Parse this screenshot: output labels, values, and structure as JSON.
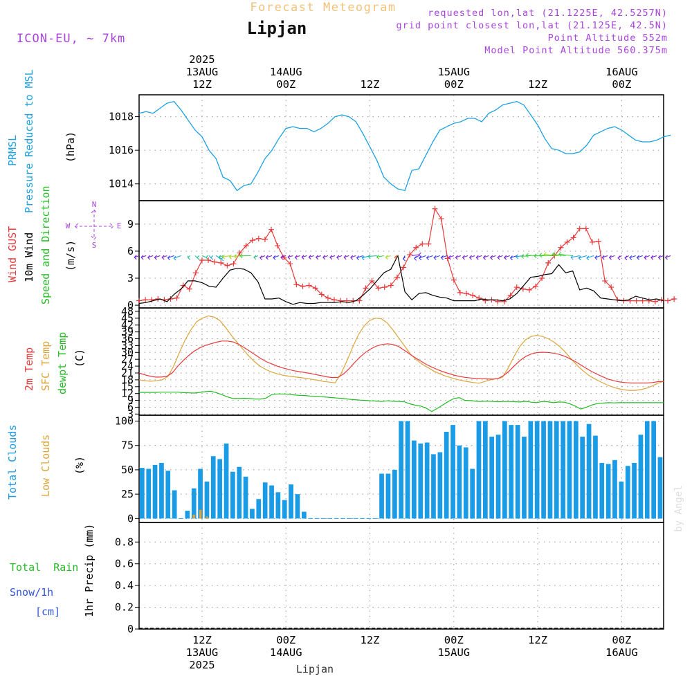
{
  "header": {
    "title": "Forecast Meteogram",
    "location": "Lipjan",
    "model": "ICON-EU, ~ 7km",
    "requested": "requested lon,lat (21.1225E, 42.5257N)",
    "gridpoint": "grid point closest lon,lat (21.125E, 42.5N)",
    "altitude": "Point Altitude 552m",
    "model_altitude": "Model Point Altitude 560.375m",
    "footer": "Lipjan",
    "watermark": "by Angel"
  },
  "colors": {
    "pressure": "#1ba1e2",
    "gust": "#e8393b",
    "wind": "#000000",
    "dir_label": "#22bb22",
    "sfc": "#dca43a",
    "dewpt": "#22bb22",
    "total_clouds": "#1a9be6",
    "low_clouds": "#dca43a",
    "rain": "#22bb22",
    "snow": "#3355dd",
    "compass": "#aa44dd",
    "header_purple": "#aa44dd",
    "header_orange": "#f2c27a",
    "grid": "#999999"
  },
  "labels": {
    "p1": [
      "PRMSL",
      "Pressure Reduced to MSL"
    ],
    "p1_unit": "(hPa)",
    "p2": [
      "Wind GUST",
      "10m Wind",
      "Speed and Direction"
    ],
    "p2_unit": "(m/s)",
    "compass": {
      "n": "N",
      "s": "S",
      "w": "W",
      "e": "E"
    },
    "p3": [
      "2m Temp",
      "SFC Temp",
      "dewpt Temp"
    ],
    "p3_unit": "(C)",
    "p4": [
      "Total Clouds",
      "Low Clouds"
    ],
    "p4_unit": "(%)",
    "p5_left": [
      "Total  Rain",
      "Snow/1h",
      "[cm]"
    ],
    "p5_axis": "1hr Precip (mm)"
  },
  "time_axis": {
    "top": [
      {
        "hour": 12,
        "lines": [
          "2025",
          "13AUG",
          "12Z"
        ]
      },
      {
        "hour": 24,
        "lines": [
          "14AUG",
          "00Z"
        ]
      },
      {
        "hour": 36,
        "lines": [
          "12Z"
        ]
      },
      {
        "hour": 48,
        "lines": [
          "15AUG",
          "00Z"
        ]
      },
      {
        "hour": 60,
        "lines": [
          "12Z"
        ]
      },
      {
        "hour": 72,
        "lines": [
          "16AUG",
          "00Z"
        ]
      }
    ],
    "bottom": [
      {
        "hour": 12,
        "lines": [
          "12Z",
          "13AUG",
          "2025"
        ]
      },
      {
        "hour": 24,
        "lines": [
          "00Z",
          "14AUG"
        ]
      },
      {
        "hour": 36,
        "lines": [
          "12Z"
        ]
      },
      {
        "hour": 48,
        "lines": [
          "00Z",
          "15AUG"
        ]
      },
      {
        "hour": 60,
        "lines": [
          "12Z"
        ]
      },
      {
        "hour": 72,
        "lines": [
          "00Z",
          "16AUG"
        ]
      }
    ]
  },
  "chart_data": [
    {
      "type": "line",
      "name": "PRMSL",
      "ylim": [
        1013,
        1019.3
      ],
      "yticks": [
        1014,
        1016,
        1018
      ],
      "x": [
        0,
        1,
        2,
        3,
        4,
        5,
        6,
        7,
        8,
        9,
        10,
        11,
        12,
        13,
        14,
        15,
        16,
        17,
        18,
        19,
        20,
        21,
        22,
        23,
        24,
        25,
        26,
        27,
        28,
        29,
        30,
        31,
        32,
        33,
        34,
        35,
        36,
        37,
        38,
        39,
        40,
        41,
        42,
        43,
        44,
        45,
        46,
        47,
        48,
        49,
        50,
        51,
        52,
        53,
        54,
        55,
        56,
        57,
        58,
        59,
        60,
        61,
        62,
        63,
        64,
        65,
        66,
        67,
        68,
        69,
        70,
        71,
        72,
        73,
        74,
        75,
        76
      ],
      "values": [
        1018.2,
        1018.3,
        1018.2,
        1018.5,
        1018.8,
        1018.9,
        1018.4,
        1017.8,
        1017.2,
        1016.8,
        1016.0,
        1015.5,
        1014.4,
        1014.2,
        1013.6,
        1013.9,
        1014.0,
        1014.7,
        1015.5,
        1016.0,
        1016.7,
        1017.3,
        1017.4,
        1017.3,
        1017.3,
        1017.1,
        1017.3,
        1017.6,
        1018.0,
        1018.1,
        1018.0,
        1017.7,
        1017.0,
        1016.2,
        1015.4,
        1014.4,
        1014.0,
        1013.7,
        1013.6,
        1014.8,
        1014.9,
        1015.7,
        1016.5,
        1017.2,
        1017.4,
        1017.6,
        1017.7,
        1017.9,
        1017.9,
        1017.7,
        1018.2,
        1018.4,
        1018.7,
        1018.8,
        1018.9,
        1018.7,
        1018.1,
        1017.5,
        1016.7,
        1016.1,
        1016.0,
        1015.8,
        1015.8,
        1015.9,
        1016.3,
        1016.9,
        1017.1,
        1017.3,
        1017.4,
        1017.2,
        1016.9,
        1016.6,
        1016.5,
        1016.5,
        1016.6,
        1016.8,
        1016.9
      ]
    },
    {
      "type": "line",
      "name": "Wind",
      "ylim": [
        -0.3,
        11.6
      ],
      "yticks": [
        0,
        3,
        6,
        9
      ],
      "gust": [
        0.5,
        0.6,
        0.6,
        0.7,
        0.6,
        0.7,
        0.8,
        2.2,
        1.8,
        3.6,
        5.0,
        5.0,
        4.8,
        4.7,
        4.4,
        4.6,
        5.8,
        6.6,
        7.2,
        7.4,
        7.3,
        8.4,
        6.6,
        5.3,
        4.6,
        2.3,
        2.1,
        2.2,
        1.9,
        1.2,
        0.8,
        0.6,
        0.5,
        0.5,
        0.5,
        0.5,
        1.9,
        2.7,
        1.9,
        2.0,
        2.2,
        3.1,
        4.2,
        5.6,
        6.4,
        6.8,
        6.8,
        10.7,
        9.6,
        5.2,
        2.8,
        1.4,
        1.3,
        1.1,
        0.8,
        0.5,
        0.6,
        0.4,
        0.4,
        1.1,
        2.0,
        1.8,
        1.7,
        2.1,
        3.0,
        4.7,
        5.5,
        6.4,
        7.0,
        7.5,
        8.5,
        8.5,
        7.0,
        7.1,
        2.7,
        2.0,
        0.6,
        0.5,
        0.5,
        0.5,
        0.5,
        0.5,
        0.4,
        0.6,
        0.5,
        0.7
      ],
      "wind": [
        0.2,
        0.3,
        0.5,
        0.7,
        0.4,
        1.2,
        1.8,
        2.7,
        2.7,
        2.5,
        2.1,
        2.0,
        3.0,
        3.9,
        4.1,
        4.0,
        3.6,
        2.6,
        0.7,
        0.7,
        0.8,
        0.4,
        0.1,
        0.3,
        0.2,
        0.2,
        0.3,
        0.3,
        0.3,
        0.4,
        0.3,
        0.5,
        1.1,
        1.8,
        2.7,
        3.6,
        4.0,
        5.5,
        1.5,
        0.6,
        1.3,
        1.4,
        1.1,
        0.9,
        0.8,
        0.5,
        0.5,
        0.5,
        0.5,
        0.7,
        0.6,
        0.6,
        0.5,
        0.7,
        1.3,
        2.2,
        3.1,
        3.2,
        3.4,
        3.5,
        4.5,
        3.6,
        3.8,
        1.7,
        1.9,
        1.6,
        0.8,
        0.7,
        0.6,
        0.5,
        0.6,
        1.0,
        0.8,
        0.6,
        0.7,
        0.5
      ],
      "gust_x_step": 0.9,
      "arrow_x": [
        0,
        1,
        2,
        3,
        4,
        5,
        6,
        7,
        8,
        9,
        10,
        11,
        12,
        13,
        14,
        15,
        16,
        17,
        18,
        19,
        20,
        21,
        22,
        23,
        24,
        25,
        26,
        27,
        28,
        29,
        30,
        31,
        32,
        33,
        34,
        35,
        36,
        37,
        38,
        39,
        40,
        41,
        42,
        43,
        44,
        45,
        46,
        47,
        48,
        49,
        50,
        51,
        52,
        53,
        54,
        55,
        56,
        57,
        58,
        59,
        60,
        61,
        62,
        63,
        64,
        65,
        66,
        67,
        68,
        69,
        70,
        71,
        72,
        73,
        74,
        75,
        76
      ],
      "arrow_dir": [
        45,
        45,
        45,
        45,
        45,
        45,
        45,
        90,
        100,
        110,
        100,
        120,
        70,
        60,
        60,
        50,
        40,
        70,
        50,
        40,
        45,
        45,
        40,
        45,
        40,
        40,
        45,
        45,
        45,
        45,
        45,
        45,
        45,
        40,
        45,
        60,
        70,
        80,
        80,
        200,
        60,
        45,
        45,
        45,
        45,
        45,
        45,
        45,
        45,
        45,
        45,
        45,
        45,
        45,
        45,
        45,
        45,
        30,
        40,
        30,
        25,
        20,
        20,
        30,
        40,
        45,
        45,
        45,
        45,
        60,
        60,
        45,
        45,
        45,
        45,
        45,
        45
      ]
    },
    {
      "type": "line",
      "name": "Temperature",
      "ylim": [
        2.5,
        49.5
      ],
      "yticks": [
        3,
        6,
        9,
        12,
        15,
        18,
        21,
        24,
        27,
        30,
        33,
        36,
        39,
        42,
        45,
        48
      ],
      "x_step": 0.5,
      "t2m": [
        21.0,
        20.2,
        19.6,
        19.2,
        19.2,
        19.5,
        21.0,
        24.0,
        26.5,
        28.7,
        30.6,
        32.0,
        33.1,
        33.8,
        34.5,
        35.0,
        35.0,
        34.6,
        33.6,
        32.2,
        30.6,
        29.0,
        27.4,
        26.0,
        25.0,
        24.0,
        23.2,
        22.6,
        22.0,
        21.6,
        21.2,
        20.8,
        20.3,
        19.8,
        19.3,
        19.0,
        19.1,
        20.5,
        22.8,
        25.5,
        28.0,
        30.0,
        31.6,
        32.8,
        33.5,
        33.8,
        33.5,
        32.6,
        31.0,
        29.3,
        27.7,
        26.2,
        24.8,
        23.6,
        22.5,
        21.6,
        20.8,
        20.1,
        19.5,
        19.1,
        18.8,
        18.6,
        18.5,
        18.4,
        18.3,
        18.5,
        19.8,
        21.8,
        24.2,
        26.5,
        28.2,
        29.3,
        29.9,
        30.1,
        30.0,
        29.7,
        29.2,
        28.4,
        27.3,
        26.0,
        24.5,
        23.0,
        21.6,
        20.4,
        19.3,
        18.3,
        17.6,
        17.1,
        16.8,
        16.6,
        16.6,
        16.6,
        16.6,
        16.8,
        17.2,
        17.3
      ],
      "sfc": [
        18.0,
        17.6,
        17.4,
        17.6,
        18.0,
        19.5,
        24.0,
        30.0,
        35.5,
        40.0,
        43.5,
        45.0,
        46.0,
        45.5,
        44.0,
        41.0,
        37.5,
        34.5,
        31.5,
        28.5,
        26.0,
        24.0,
        22.5,
        21.4,
        20.6,
        20.0,
        19.6,
        19.3,
        19.0,
        18.6,
        18.2,
        17.8,
        17.3,
        17.0,
        16.7,
        20.5,
        26.0,
        32.0,
        37.5,
        41.5,
        44.0,
        45.0,
        44.8,
        43.0,
        40.0,
        36.5,
        33.0,
        29.5,
        27.0,
        25.0,
        23.5,
        22.0,
        20.8,
        19.8,
        19.0,
        18.3,
        17.7,
        17.2,
        16.8,
        16.5,
        17.3,
        18.0,
        18.5,
        19.0,
        23.0,
        28.0,
        32.5,
        35.5,
        37.0,
        37.5,
        37.0,
        36.0,
        34.5,
        32.5,
        30.0,
        27.0,
        24.3,
        22.0,
        20.0,
        18.5,
        17.2,
        16.0,
        15.0,
        14.2,
        13.7,
        13.4,
        13.4,
        13.7,
        14.3,
        15.3,
        16.5,
        17.3
      ],
      "dewpt": [
        12.5,
        12.5,
        12.5,
        12.5,
        12.6,
        12.6,
        12.6,
        12.6,
        12.4,
        12.3,
        12.2,
        12.5,
        12.8,
        13.0,
        12.4,
        11.5,
        10.5,
        9.8,
        9.8,
        9.9,
        9.8,
        9.6,
        9.6,
        10.0,
        11.5,
        11.8,
        11.8,
        11.7,
        11.4,
        11.2,
        11.1,
        10.9,
        10.8,
        10.6,
        10.4,
        10.2,
        10.0,
        9.8,
        9.5,
        9.3,
        9.1,
        9.0,
        8.8,
        8.7,
        8.5,
        8.8,
        8.6,
        8.5,
        8.4,
        7.5,
        6.9,
        6.5,
        5.6,
        4.1,
        5.5,
        7.0,
        8.5,
        9.8,
        10.2,
        9.0,
        8.9,
        8.6,
        8.5,
        8.7,
        8.5,
        8.4,
        8.5,
        8.5,
        8.4,
        8.3,
        8.6,
        8.2,
        8.0,
        8.5,
        8.4,
        8.0,
        8.3,
        8.2,
        7.5,
        6.5,
        5.2,
        6.0,
        7.0,
        7.6,
        7.8,
        8.0,
        7.9,
        8.0,
        8.0,
        8.0,
        8.0,
        8.0,
        8.0,
        8.0,
        8.0,
        8.0
      ]
    },
    {
      "type": "bar",
      "name": "Clouds",
      "ylim": [
        -4,
        106
      ],
      "yticks": [
        0,
        25,
        50,
        75,
        100
      ],
      "x_step": 0.75,
      "total": [
        52,
        51,
        55,
        57,
        49,
        29,
        0,
        8,
        31,
        51,
        38,
        64,
        61,
        77,
        48,
        53,
        43,
        10,
        20,
        37,
        34,
        27,
        19,
        35,
        25,
        7,
        0,
        0,
        0,
        0,
        0,
        0,
        0,
        0,
        0,
        0,
        0,
        46,
        46,
        50,
        100,
        100,
        80,
        77,
        78,
        66,
        68,
        89,
        96,
        75,
        73,
        51,
        100,
        100,
        84,
        86,
        100,
        96,
        96,
        84,
        100,
        100,
        100,
        100,
        100,
        100,
        100,
        100,
        84,
        97,
        85,
        57,
        56,
        60,
        38,
        54,
        57,
        86,
        100,
        100,
        63
      ],
      "low": [
        0,
        0,
        0,
        0,
        0,
        0,
        0,
        0,
        4,
        9,
        2,
        0,
        0,
        0,
        0,
        0,
        0,
        0,
        0,
        0,
        0,
        0,
        0,
        0,
        0,
        0,
        0,
        0,
        0,
        0,
        0,
        0,
        0,
        0,
        0,
        0,
        0,
        0,
        0,
        0,
        0,
        0,
        0,
        0,
        0,
        0,
        0,
        0,
        0,
        0,
        0,
        0,
        0,
        0,
        0,
        0,
        0,
        0,
        0,
        0,
        0,
        0,
        0,
        0,
        0,
        0,
        0,
        0,
        0,
        0,
        0,
        0,
        0,
        0,
        0,
        0,
        0,
        0,
        0,
        0,
        0
      ]
    },
    {
      "type": "bar",
      "name": "Precip",
      "ylim": [
        0,
        0.98
      ],
      "yticks": [
        0,
        0.2,
        0.4,
        0.6,
        0.8
      ],
      "values": []
    }
  ]
}
